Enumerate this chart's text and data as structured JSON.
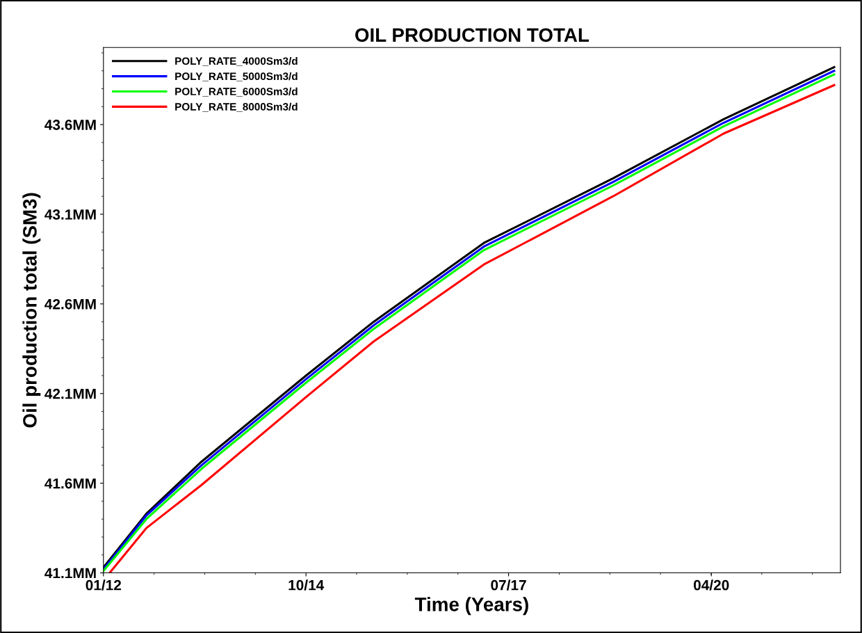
{
  "chart_data": {
    "type": "line",
    "title": "OIL PRODUCTION TOTAL",
    "xlabel": "Time (Years)",
    "ylabel": "Oil production total (SM3)",
    "x": [
      "2012-01",
      "2012-08",
      "2013-05",
      "2014-10",
      "2015-09",
      "2017-03",
      "2018-12",
      "2020-06",
      "2021-12"
    ],
    "series": [
      {
        "name": "POLY_RATE_4000Sm3/d",
        "color": "#000000",
        "values": [
          41.13,
          41.43,
          41.72,
          42.2,
          42.5,
          42.94,
          43.3,
          43.63,
          43.92
        ]
      },
      {
        "name": "POLY_RATE_5000Sm3/d",
        "color": "#0000ff",
        "values": [
          41.12,
          41.42,
          41.7,
          42.18,
          42.48,
          42.92,
          43.28,
          43.61,
          43.9
        ]
      },
      {
        "name": "POLY_RATE_6000Sm3/d",
        "color": "#00ff00",
        "values": [
          41.11,
          41.4,
          41.68,
          42.16,
          42.46,
          42.9,
          43.26,
          43.59,
          43.88
        ]
      },
      {
        "name": "POLY_RATE_8000Sm3/d",
        "color": "#ff0000",
        "x": [
          "2012-02",
          "2012-08",
          "2013-05",
          "2014-10",
          "2015-09",
          "2017-03",
          "2018-12",
          "2020-06",
          "2021-12"
        ],
        "values": [
          41.1,
          41.35,
          41.59,
          42.08,
          42.39,
          42.82,
          43.2,
          43.55,
          43.82
        ]
      }
    ],
    "xlim": [
      "2012-01",
      "2022-01"
    ],
    "xticks": [
      {
        "value": "2012-01",
        "label": "01/12"
      },
      {
        "value": "2014-10",
        "label": "10/14"
      },
      {
        "value": "2017-07",
        "label": "07/17"
      },
      {
        "value": "2020-04",
        "label": "04/20"
      }
    ],
    "ylim": [
      41.1,
      44.03
    ],
    "yticks": [
      {
        "value": 41.1,
        "label": "41.1MM"
      },
      {
        "value": 41.6,
        "label": "41.6MM"
      },
      {
        "value": 42.1,
        "label": "42.1MM"
      },
      {
        "value": 42.6,
        "label": "42.6MM"
      },
      {
        "value": 43.1,
        "label": "43.1MM"
      },
      {
        "value": 43.6,
        "label": "43.6MM"
      }
    ],
    "grid": false,
    "legend": "top left",
    "line_style": "solid",
    "marker": "none"
  }
}
